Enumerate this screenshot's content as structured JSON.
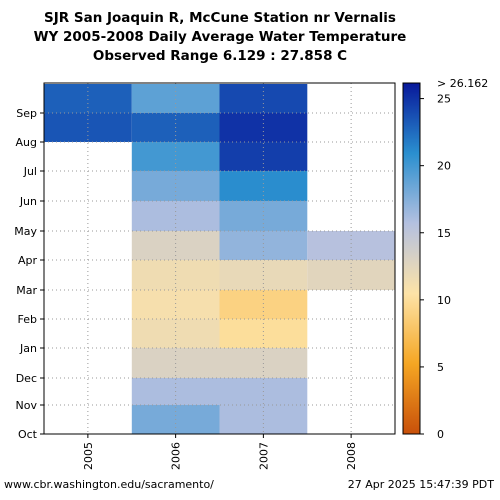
{
  "chart_data": {
    "type": "heatmap",
    "title_lines": [
      "SJR San Joaquin R, McCune Station nr Vernalis",
      "WY 2005-2008 Daily Average Water Temperature",
      "Observed Range 6.129 : 27.858 C"
    ],
    "x": [
      "2005",
      "2006",
      "2007",
      "2008"
    ],
    "y_ticks": [
      "Oct",
      "Nov",
      "Dec",
      "Jan",
      "Feb",
      "Mar",
      "Apr",
      "May",
      "Jun",
      "Jul",
      "Aug",
      "Sep"
    ],
    "colorbar": {
      "ticks": [
        0,
        5,
        10,
        15,
        20,
        25
      ],
      "max_label": "> 26.162",
      "range": [
        0,
        26.162
      ],
      "colors": [
        "#c8500a",
        "#f5a623",
        "#fde3a7",
        "#b4c0e0",
        "#2a8fcf",
        "#08189a"
      ]
    },
    "series_month_temps": [
      {
        "name": "2005",
        "values": [
          null,
          null,
          null,
          null,
          null,
          null,
          null,
          null,
          null,
          null,
          23.5,
          23
        ]
      },
      {
        "name": "2006",
        "values": [
          18,
          16,
          13,
          11.5,
          11,
          11.5,
          13,
          16,
          18,
          20,
          23,
          19
        ]
      },
      {
        "name": "2007",
        "values": [
          16,
          16,
          13,
          10,
          9,
          12,
          17,
          18,
          21,
          24.5,
          25,
          24
        ]
      },
      {
        "name": "2008",
        "values": [
          null,
          null,
          null,
          null,
          null,
          12.5,
          15.5,
          null,
          null,
          null,
          null,
          null
        ]
      }
    ],
    "grid": true
  },
  "footer": {
    "url": "www.cbr.washington.edu/sacramento/",
    "timestamp": "27 Apr 2025 15:47:39 PDT"
  }
}
